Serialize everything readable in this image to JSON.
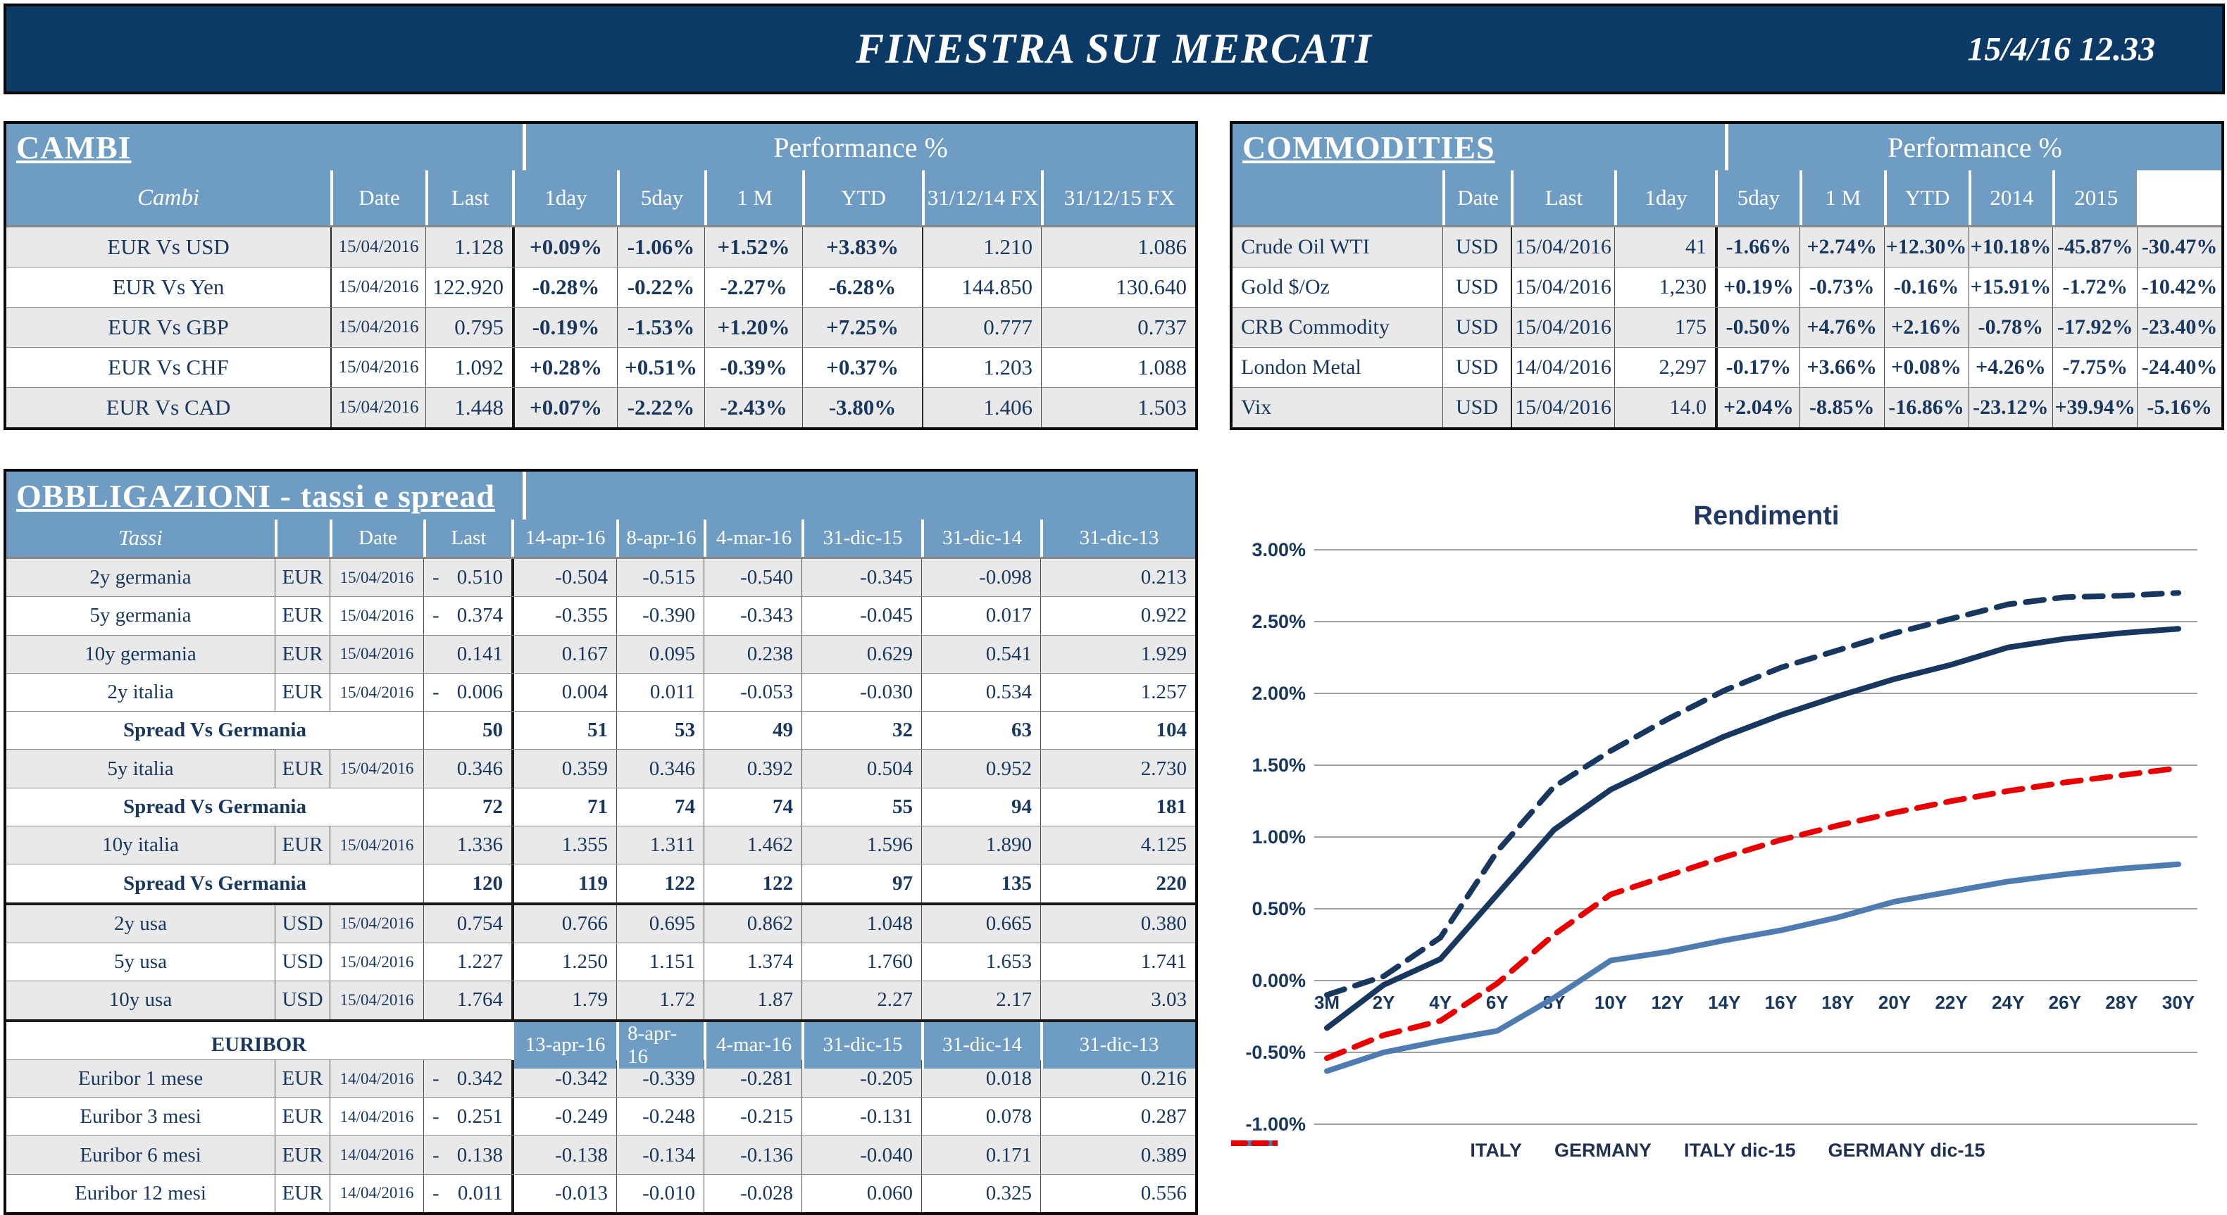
{
  "header": {
    "title": "FINESTRA SUI MERCATI",
    "datetime": "15/4/16 12.33"
  },
  "colors": {
    "banner_navy": "#0B3A67",
    "table_header_blue": "#6E9CC3",
    "text_navy": "#17375E",
    "positive_green": "#00A04A",
    "negative_red": "#E80000",
    "row_shade_gray": "#E9E9E9",
    "italy_line": "#17375E",
    "germany_line": "#4E7CB0",
    "germany_dec15_line": "#E80000",
    "gridline_gray": "#A0A0A0"
  },
  "cambi": {
    "title": "CAMBI",
    "perf_header": "Performance %",
    "columns": [
      "Cambi",
      "Date",
      "Last",
      "1day",
      "5day",
      "1 M",
      "YTD",
      "31/12/14 FX",
      "31/12/15  FX"
    ],
    "rows": [
      {
        "name": "EUR Vs USD",
        "date": "15/04/2016",
        "last": "1.128",
        "perf": [
          "+0.09%",
          "-1.06%",
          "+1.52%",
          "+3.83%"
        ],
        "fx": [
          "1.210",
          "1.086"
        ],
        "shade": true
      },
      {
        "name": "EUR Vs Yen",
        "date": "15/04/2016",
        "last": "122.920",
        "perf": [
          "-0.28%",
          "-0.22%",
          "-2.27%",
          "-6.28%"
        ],
        "fx": [
          "144.850",
          "130.640"
        ],
        "shade": false
      },
      {
        "name": "EUR Vs GBP",
        "date": "15/04/2016",
        "last": "0.795",
        "perf": [
          "-0.19%",
          "-1.53%",
          "+1.20%",
          "+7.25%"
        ],
        "fx": [
          "0.777",
          "0.737"
        ],
        "shade": true
      },
      {
        "name": "EUR Vs CHF",
        "date": "15/04/2016",
        "last": "1.092",
        "perf": [
          "+0.28%",
          "+0.51%",
          "-0.39%",
          "+0.37%"
        ],
        "fx": [
          "1.203",
          "1.088"
        ],
        "shade": false
      },
      {
        "name": "EUR Vs CAD",
        "date": "15/04/2016",
        "last": "1.448",
        "perf": [
          "+0.07%",
          "-2.22%",
          "-2.43%",
          "-3.80%"
        ],
        "fx": [
          "1.406",
          "1.503"
        ],
        "shade": true
      }
    ]
  },
  "commodities": {
    "title": "COMMODITIES",
    "perf_header": "Performance %",
    "columns": [
      "",
      "Date",
      "Last",
      "1day",
      "5day",
      "1 M",
      "YTD",
      "2014",
      "2015"
    ],
    "rows": [
      {
        "name": "Crude Oil WTI",
        "ccy": "USD",
        "date": "15/04/2016",
        "last": "41",
        "perf": [
          "-1.66%",
          "+2.74%",
          "+12.30%",
          "+10.18%",
          "-45.87%",
          "-30.47%"
        ],
        "shade": true
      },
      {
        "name": "Gold $/Oz",
        "ccy": "USD",
        "date": "15/04/2016",
        "last": "1,230",
        "perf": [
          "+0.19%",
          "-0.73%",
          "-0.16%",
          "+15.91%",
          "-1.72%",
          "-10.42%"
        ],
        "shade": false
      },
      {
        "name": "CRB Commodity",
        "ccy": "USD",
        "date": "15/04/2016",
        "last": "175",
        "perf": [
          "-0.50%",
          "+4.76%",
          "+2.16%",
          "-0.78%",
          "-17.92%",
          "-23.40%"
        ],
        "shade": true
      },
      {
        "name": "London Metal",
        "ccy": "USD",
        "date": "14/04/2016",
        "last": "2,297",
        "perf": [
          "-0.17%",
          "+3.66%",
          "+0.08%",
          "+4.26%",
          "-7.75%",
          "-24.40%"
        ],
        "shade": false
      },
      {
        "name": "Vix",
        "ccy": "USD",
        "date": "15/04/2016",
        "last": "14.0",
        "perf": [
          "+2.04%",
          "-8.85%",
          "-16.86%",
          "-23.12%",
          "+39.94%",
          "-5.16%"
        ],
        "shade": true
      }
    ]
  },
  "obbligazioni": {
    "title": "OBBLIGAZIONI - tassi e spread",
    "columns": [
      "Tassi",
      "",
      "Date",
      "Last",
      "14-apr-16",
      "8-apr-16",
      "4-mar-16",
      "31-dic-15",
      "31-dic-14",
      "31-dic-13"
    ],
    "euribor_columns": [
      "13-apr-16",
      "8-apr-16",
      "4-mar-16",
      "31-dic-15",
      "31-dic-14",
      "31-dic-13"
    ],
    "rows": [
      {
        "type": "data",
        "name": "2y germania",
        "ccy": "EUR",
        "date": "15/04/2016",
        "neg": true,
        "last": "0.510",
        "values": [
          "-0.504",
          "-0.515",
          "-0.540",
          "-0.345",
          "-0.098",
          "0.213"
        ],
        "shade": true
      },
      {
        "type": "data",
        "name": "5y germania",
        "ccy": "EUR",
        "date": "15/04/2016",
        "neg": true,
        "last": "0.374",
        "values": [
          "-0.355",
          "-0.390",
          "-0.343",
          "-0.045",
          "0.017",
          "0.922"
        ],
        "shade": false
      },
      {
        "type": "data",
        "name": "10y germania",
        "ccy": "EUR",
        "date": "15/04/2016",
        "neg": false,
        "last": "0.141",
        "values": [
          "0.167",
          "0.095",
          "0.238",
          "0.629",
          "0.541",
          "1.929"
        ],
        "shade": true
      },
      {
        "type": "data",
        "name": "2y italia",
        "ccy": "EUR",
        "date": "15/04/2016",
        "neg": true,
        "last": "0.006",
        "values": [
          "0.004",
          "0.011",
          "-0.053",
          "-0.030",
          "0.534",
          "1.257"
        ],
        "shade": false
      },
      {
        "type": "spread",
        "label": "Spread Vs Germania",
        "last": "50",
        "values": [
          "51",
          "53",
          "49",
          "32",
          "63",
          "104"
        ],
        "shade": false
      },
      {
        "type": "data",
        "name": "5y italia",
        "ccy": "EUR",
        "date": "15/04/2016",
        "neg": false,
        "last": "0.346",
        "values": [
          "0.359",
          "0.346",
          "0.392",
          "0.504",
          "0.952",
          "2.730"
        ],
        "shade": true
      },
      {
        "type": "spread",
        "label": "Spread Vs Germania",
        "last": "72",
        "values": [
          "71",
          "74",
          "74",
          "55",
          "94",
          "181"
        ],
        "shade": false
      },
      {
        "type": "data",
        "name": "10y italia",
        "ccy": "EUR",
        "date": "15/04/2016",
        "neg": false,
        "last": "1.336",
        "values": [
          "1.355",
          "1.311",
          "1.462",
          "1.596",
          "1.890",
          "4.125"
        ],
        "shade": true
      },
      {
        "type": "spread",
        "label": "Spread Vs Germania",
        "last": "120",
        "values": [
          "119",
          "122",
          "122",
          "97",
          "135",
          "220"
        ],
        "shade": false
      },
      {
        "type": "data",
        "name": "2y usa",
        "ccy": "USD",
        "date": "15/04/2016",
        "neg": false,
        "last": "0.754",
        "values": [
          "0.766",
          "0.695",
          "0.862",
          "1.048",
          "0.665",
          "0.380"
        ],
        "shade": true,
        "thick_top": true
      },
      {
        "type": "data",
        "name": "5y usa",
        "ccy": "USD",
        "date": "15/04/2016",
        "neg": false,
        "last": "1.227",
        "values": [
          "1.250",
          "1.151",
          "1.374",
          "1.760",
          "1.653",
          "1.741"
        ],
        "shade": false
      },
      {
        "type": "data",
        "name": "10y usa",
        "ccy": "USD",
        "date": "15/04/2016",
        "neg": false,
        "last": "1.764",
        "values": [
          "1.79",
          "1.72",
          "1.87",
          "2.27",
          "2.17",
          "3.03"
        ],
        "shade": true
      },
      {
        "type": "subheader",
        "label": "EURIBOR",
        "shade": false,
        "thick_top": true
      },
      {
        "type": "data",
        "name": "Euribor 1 mese",
        "ccy": "EUR",
        "date": "14/04/2016",
        "neg": true,
        "last": "0.342",
        "values": [
          "-0.342",
          "-0.339",
          "-0.281",
          "-0.205",
          "0.018",
          "0.216"
        ],
        "shade": true
      },
      {
        "type": "data",
        "name": "Euribor 3 mesi",
        "ccy": "EUR",
        "date": "14/04/2016",
        "neg": true,
        "last": "0.251",
        "values": [
          "-0.249",
          "-0.248",
          "-0.215",
          "-0.131",
          "0.078",
          "0.287"
        ],
        "shade": false
      },
      {
        "type": "data",
        "name": "Euribor 6 mesi",
        "ccy": "EUR",
        "date": "14/04/2016",
        "neg": true,
        "last": "0.138",
        "values": [
          "-0.138",
          "-0.134",
          "-0.136",
          "-0.040",
          "0.171",
          "0.389"
        ],
        "shade": true
      },
      {
        "type": "data",
        "name": "Euribor 12 mesi",
        "ccy": "EUR",
        "date": "14/04/2016",
        "neg": true,
        "last": "0.011",
        "values": [
          "-0.013",
          "-0.010",
          "-0.028",
          "0.060",
          "0.325",
          "0.556"
        ],
        "shade": false
      }
    ]
  },
  "chart_data": {
    "type": "line",
    "title": "Rendimenti",
    "categories": [
      "3M",
      "2Y",
      "4Y",
      "6Y",
      "8Y",
      "10Y",
      "12Y",
      "14Y",
      "16Y",
      "18Y",
      "20Y",
      "22Y",
      "24Y",
      "26Y",
      "28Y",
      "30Y"
    ],
    "y_tick_labels": [
      "3.00%",
      "2.50%",
      "2.00%",
      "1.50%",
      "1.00%",
      "0.50%",
      "0.00%",
      "-0.50%",
      "-1.00%"
    ],
    "y_ticks": [
      3.0,
      2.5,
      2.0,
      1.5,
      1.0,
      0.5,
      0.0,
      -0.5,
      -1.0
    ],
    "ylim": [
      -1.0,
      3.0
    ],
    "grid": true,
    "legend_position": "bottom",
    "series": [
      {
        "name": "ITALY",
        "style": "solid",
        "color": "#17375E",
        "values": [
          -0.33,
          -0.03,
          0.15,
          0.6,
          1.05,
          1.33,
          1.52,
          1.7,
          1.85,
          1.98,
          2.1,
          2.2,
          2.32,
          2.38,
          2.42,
          2.45
        ]
      },
      {
        "name": "GERMANY",
        "style": "solid",
        "color": "#4E7CB0",
        "values": [
          -0.63,
          -0.5,
          -0.42,
          -0.35,
          -0.12,
          0.14,
          0.2,
          0.28,
          0.35,
          0.44,
          0.55,
          0.62,
          0.69,
          0.74,
          0.78,
          0.81
        ]
      },
      {
        "name": "ITALY dic-15",
        "style": "dashed",
        "color": "#17375E",
        "values": [
          -0.1,
          0.03,
          0.3,
          0.9,
          1.35,
          1.6,
          1.82,
          2.02,
          2.18,
          2.3,
          2.42,
          2.52,
          2.62,
          2.67,
          2.68,
          2.7
        ]
      },
      {
        "name": "GERMANY dic-15",
        "style": "dashed",
        "color": "#E80000",
        "values": [
          -0.54,
          -0.38,
          -0.28,
          -0.02,
          0.32,
          0.6,
          0.73,
          0.86,
          0.98,
          1.08,
          1.17,
          1.25,
          1.32,
          1.38,
          1.43,
          1.48
        ]
      }
    ]
  }
}
